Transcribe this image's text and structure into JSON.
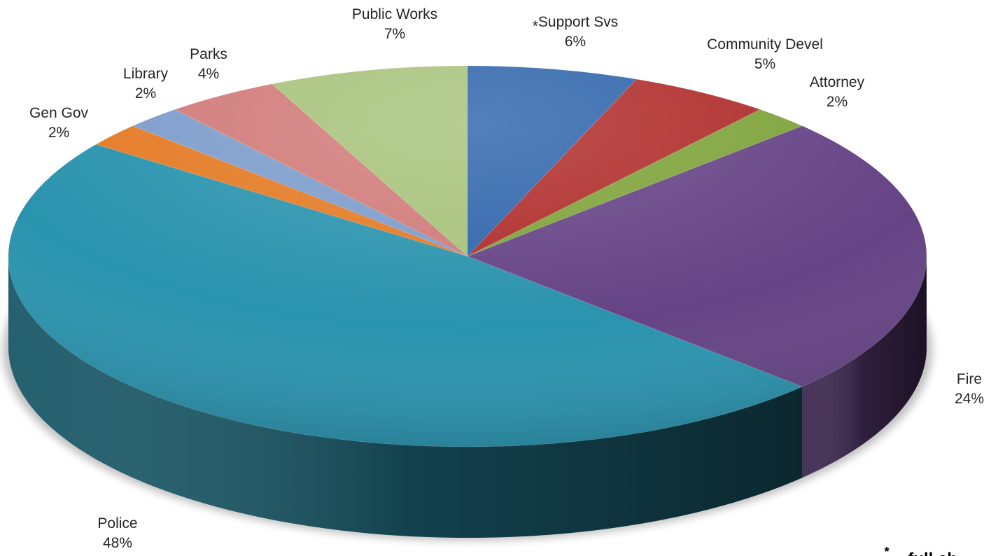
{
  "chart_data": {
    "type": "pie",
    "style": "3d",
    "title": "",
    "start_angle_deg": 0,
    "direction": "clockwise",
    "slices": [
      {
        "name": "Support Svs",
        "prefix": "*",
        "value": 6,
        "label": "6%",
        "color": "#2E64AB"
      },
      {
        "name": "Community Devel",
        "prefix": "",
        "value": 5,
        "label": "5%",
        "color": "#AF2C2A"
      },
      {
        "name": "Attorney",
        "prefix": "",
        "value": 2,
        "label": "2%",
        "color": "#7EA33A"
      },
      {
        "name": "Fire",
        "prefix": "",
        "value": 24,
        "label": "24%",
        "color": "#654385"
      },
      {
        "name": "Police",
        "prefix": "",
        "value": 48,
        "label": "48%",
        "color": "#2A93AE"
      },
      {
        "name": "Gen Gov",
        "prefix": "",
        "value": 2,
        "label": "2%",
        "color": "#E47A24"
      },
      {
        "name": "Library",
        "prefix": "",
        "value": 2,
        "label": "2%",
        "color": "#7C9CCB"
      },
      {
        "name": "Parks",
        "prefix": "",
        "value": 4,
        "label": "4%",
        "color": "#D07A78"
      },
      {
        "name": "Public Works",
        "prefix": "",
        "value": 7,
        "label": "7%",
        "color": "#A6C27A"
      }
    ],
    "footnote": {
      "marker": "*",
      "text": "... full ch"
    }
  }
}
